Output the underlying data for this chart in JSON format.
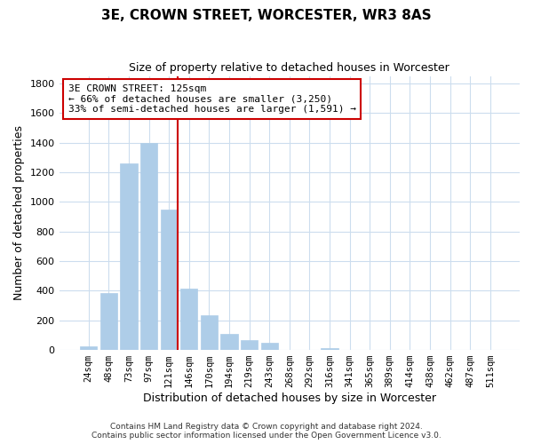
{
  "title": "3E, CROWN STREET, WORCESTER, WR3 8AS",
  "subtitle": "Size of property relative to detached houses in Worcester",
  "xlabel": "Distribution of detached houses by size in Worcester",
  "ylabel": "Number of detached properties",
  "bar_labels": [
    "24sqm",
    "48sqm",
    "73sqm",
    "97sqm",
    "121sqm",
    "146sqm",
    "170sqm",
    "194sqm",
    "219sqm",
    "243sqm",
    "268sqm",
    "292sqm",
    "316sqm",
    "341sqm",
    "365sqm",
    "389sqm",
    "414sqm",
    "438sqm",
    "462sqm",
    "487sqm",
    "511sqm"
  ],
  "bar_values": [
    25,
    385,
    1260,
    1395,
    950,
    415,
    235,
    110,
    65,
    50,
    0,
    0,
    15,
    0,
    0,
    0,
    0,
    0,
    0,
    0,
    0
  ],
  "bar_color": "#aecde8",
  "bar_edgecolor": "#aecde8",
  "vline_color": "#cc0000",
  "vline_x_index": 4,
  "ylim": [
    0,
    1850
  ],
  "yticks": [
    0,
    200,
    400,
    600,
    800,
    1000,
    1200,
    1400,
    1600,
    1800
  ],
  "annotation_title": "3E CROWN STREET: 125sqm",
  "annotation_line1": "← 66% of detached houses are smaller (3,250)",
  "annotation_line2": "33% of semi-detached houses are larger (1,591) →",
  "annotation_box_color": "#ffffff",
  "annotation_box_edgecolor": "#cc0000",
  "footer1": "Contains HM Land Registry data © Crown copyright and database right 2024.",
  "footer2": "Contains public sector information licensed under the Open Government Licence v3.0.",
  "background_color": "#ffffff",
  "grid_color": "#ccddee"
}
